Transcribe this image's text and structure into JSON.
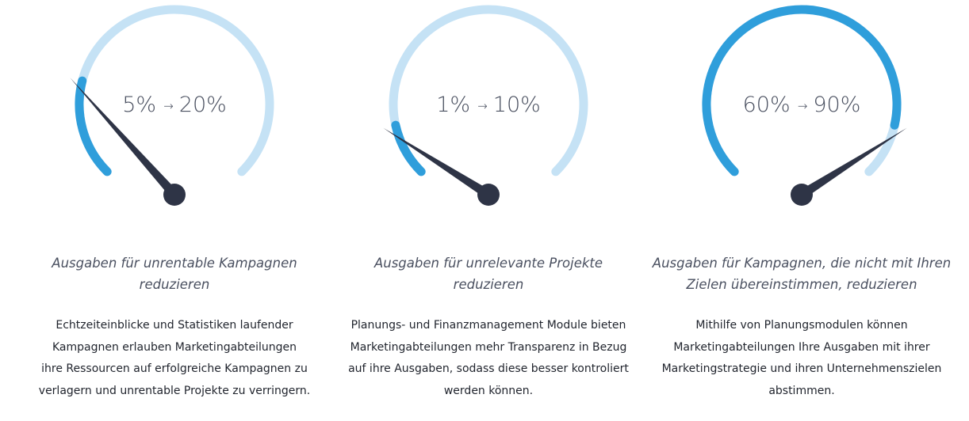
{
  "colors": {
    "track": "#c5e2f5",
    "fill": "#2f9edb",
    "needle": "#2e3446",
    "value_text": "#4a5060"
  },
  "gauges": [
    {
      "from": "5%",
      "arrow": "→",
      "to": "20%",
      "fill_fraction": 0.22,
      "needle_fraction": 0.22,
      "subtitle_line1": "Ausgaben für unrentable Kampagnen",
      "subtitle_line2": "reduzieren",
      "desc_lines": [
        "Echtzeiteinblicke und Statistiken laufender",
        "Kampagnen erlauben Marketingabteilungen",
        "ihre Ressourcen auf erfolgreiche Kampagnen zu",
        "verlagern und unrentable Projekte zu verringern."
      ]
    },
    {
      "from": "1%",
      "arrow": "→",
      "to": "10%",
      "fill_fraction": 0.12,
      "needle_fraction": 0.12,
      "subtitle_line1": "Ausgaben für unrelevante Projekte",
      "subtitle_line2": "reduzieren",
      "desc_lines": [
        "Planungs- und Finanzmanagement Module bieten",
        "Marketingabteilungen mehr Transparenz in Bezug",
        "auf ihre Ausgaben, sodass diese besser kontroliert",
        "werden können."
      ]
    },
    {
      "from": "60%",
      "arrow": "→",
      "to": "90%",
      "fill_fraction": 0.88,
      "needle_fraction": 0.88,
      "subtitle_line1": "Ausgaben für Kampagnen, die nicht mit Ihren",
      "subtitle_line2": "Zielen übereinstimmen, reduzieren",
      "desc_lines": [
        "Mithilfe von Planungsmodulen können",
        "Marketingabteilungen Ihre Ausgaben mit ihrer",
        "Marketingstrategie und ihren Unternehmenszielen",
        "abstimmen."
      ]
    }
  ]
}
